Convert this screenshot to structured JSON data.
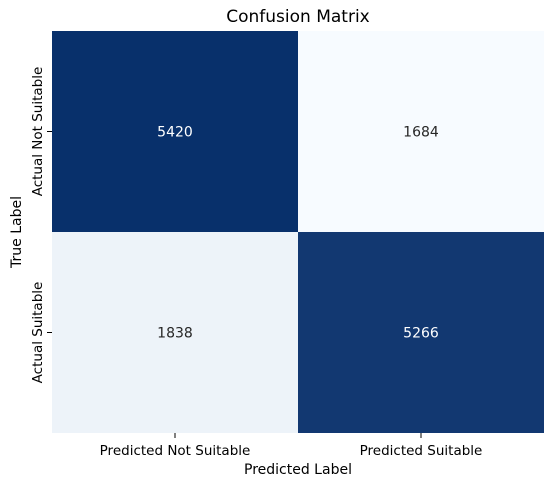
{
  "chart_data": {
    "type": "heatmap",
    "title": "Confusion Matrix",
    "xlabel": "Predicted Label",
    "ylabel": "True Label",
    "x_categories": [
      "Predicted Not Suitable",
      "Predicted Suitable"
    ],
    "y_categories": [
      "Actual Not Suitable",
      "Actual Suitable"
    ],
    "values": [
      [
        5420,
        1684
      ],
      [
        1838,
        5266
      ]
    ],
    "colormap": "Blues",
    "colorbar": false,
    "colors": {
      "high": "#08306b",
      "low": "#f7fbff",
      "text_on_dark": "#ffffff",
      "text_on_light": "#262626"
    }
  }
}
